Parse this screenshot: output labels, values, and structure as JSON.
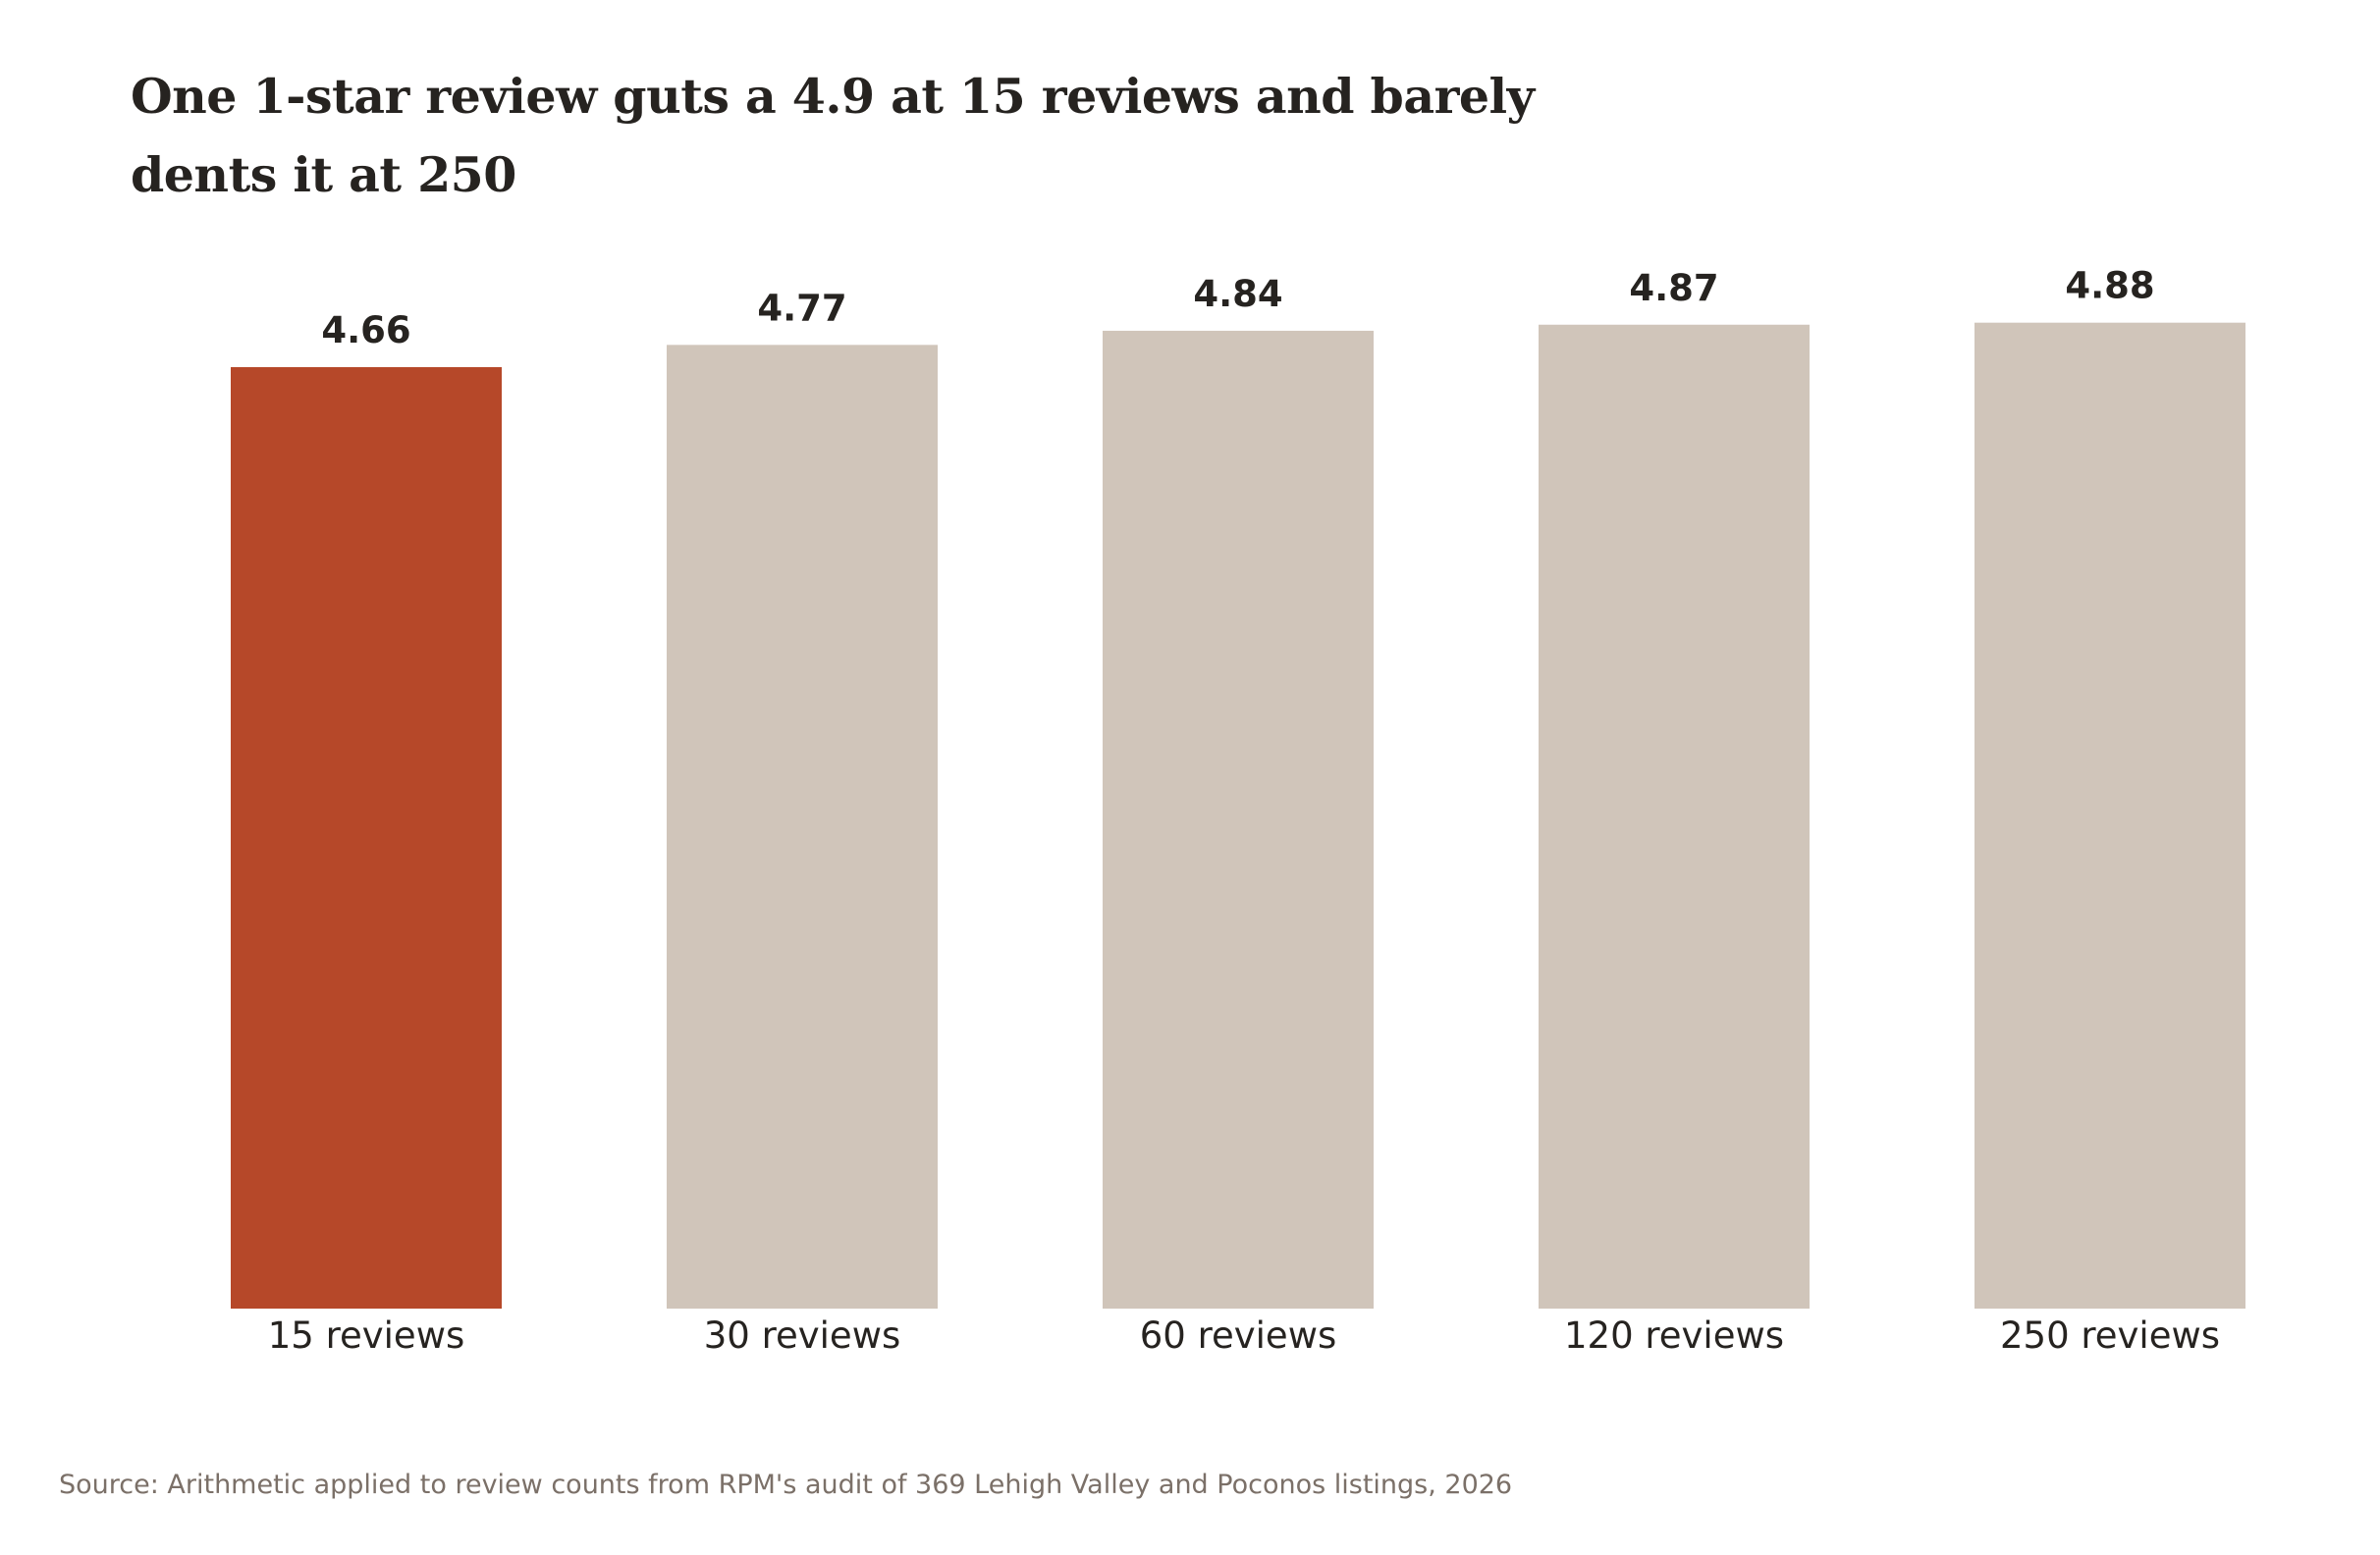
{
  "chart_data": {
    "type": "bar",
    "title": "One 1-star review guts a 4.9 at 15 reviews and barely dents it at 250",
    "categories": [
      "15 reviews",
      "30 reviews",
      "60 reviews",
      "120 reviews",
      "250 reviews"
    ],
    "values": [
      4.66,
      4.77,
      4.84,
      4.87,
      4.88
    ],
    "value_labels": [
      "4.66",
      "4.77",
      "4.84",
      "4.87",
      "4.88"
    ],
    "xlabel": "",
    "ylabel": "",
    "ylim": [
      0,
      5.0
    ],
    "grid": false,
    "legend": "none",
    "highlight_index": 0,
    "colors": {
      "highlight": "#b64829",
      "default": "#d0c5ba",
      "text": "#262320",
      "source_text": "#7b7068"
    },
    "source": "Source: Arithmetic applied to review counts from RPM's audit of 369 Lehigh Valley and Poconos listings, 2026"
  }
}
